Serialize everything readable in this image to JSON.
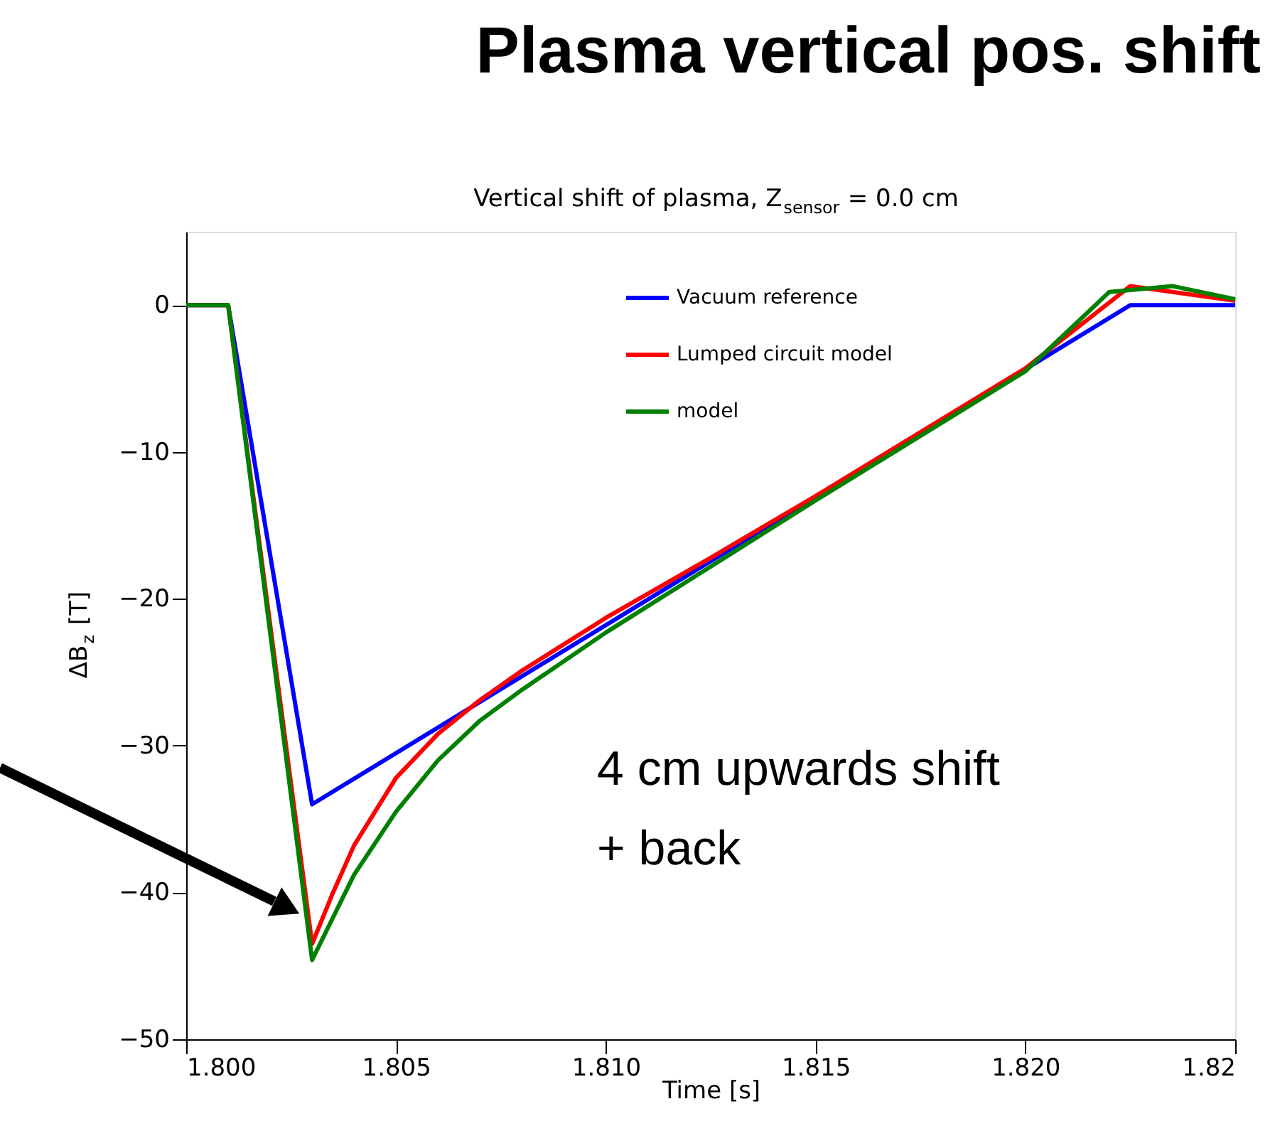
{
  "chart_data": {
    "type": "line",
    "title": "Plasma vertical pos. shift",
    "subtitle": "Vertical shift of plasma, Z$_{sensor}$ = 0.0 cm",
    "xlabel": "Time [s]",
    "ylabel": "ΔB$_{z}$ [T]",
    "xlim": [
      1.8,
      1.825
    ],
    "xticks": [
      {
        "value": 1.8,
        "label": "1.800"
      },
      1.805,
      {
        "value": 1.81,
        "label": "1.810"
      },
      1.815,
      {
        "value": 1.82,
        "label": "1.820"
      },
      {
        "value": 1.825,
        "label": "1.82"
      }
    ],
    "ylim": [
      -50,
      5
    ],
    "yticks": [
      -50,
      -40,
      -30,
      -20,
      -10,
      0
    ],
    "series": [
      {
        "name": "Vacuum reference",
        "color": "#0000ff",
        "x": [
          1.8,
          1.801,
          1.803,
          1.8225,
          1.825
        ],
        "values": [
          0,
          0,
          -34,
          0,
          0
        ]
      },
      {
        "name": "Lumped circuit model",
        "color": "#ff0000",
        "x": [
          1.8,
          1.801,
          1.803,
          1.8035,
          1.804,
          1.805,
          1.806,
          1.807,
          1.808,
          1.81,
          1.8125,
          1.815,
          1.82,
          1.8225,
          1.825
        ],
        "values": [
          0,
          0,
          -43.5,
          -40,
          -36.8,
          -32.2,
          -29.2,
          -26.9,
          -24.9,
          -21.3,
          -17.2,
          -13,
          -4.3,
          1.3,
          0.3
        ]
      },
      {
        "name": "model",
        "color": "#008000",
        "x": [
          1.8,
          1.801,
          1.803,
          1.804,
          1.805,
          1.806,
          1.807,
          1.808,
          1.81,
          1.8125,
          1.815,
          1.82,
          1.822,
          1.8235,
          1.825
        ],
        "values": [
          0,
          0,
          -44.6,
          -38.8,
          -34.5,
          -31,
          -28.3,
          -26.2,
          -22.3,
          -17.8,
          -13.3,
          -4.5,
          0.9,
          1.3,
          0.4
        ]
      }
    ],
    "annotations": [
      "4 cm upwards shift\n+ back"
    ],
    "legend": "top right",
    "grid": false,
    "marker": "none",
    "line_style": "solid"
  }
}
